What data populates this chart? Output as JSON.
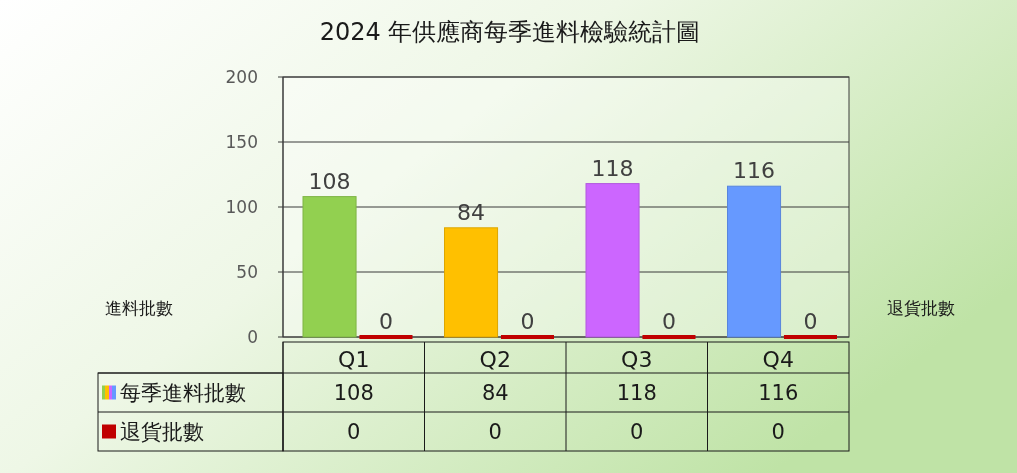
{
  "chart_data": {
    "type": "bar",
    "title": "2024 年供應商每季進料檢驗統計圖",
    "ylabel": "進料批數",
    "y2label": "退貨批數",
    "categories": [
      "Q1",
      "Q2",
      "Q3",
      "Q4"
    ],
    "series": [
      {
        "name": "每季進料批數",
        "colors": [
          "#92d050",
          "#ffc000",
          "#cc66ff",
          "#6699ff"
        ],
        "values": [
          108,
          84,
          118,
          116
        ]
      },
      {
        "name": "退貨批數",
        "color": "#c00000",
        "values": [
          0,
          0,
          0,
          0
        ]
      }
    ],
    "annotations": [
      {
        "text": "108",
        "x": "Q1",
        "y": 108
      },
      {
        "text": "84",
        "x": "Q2",
        "y": 84
      },
      {
        "text": "118",
        "x": "Q3",
        "y": 118
      },
      {
        "text": "116",
        "x": "Q4",
        "y": 116
      },
      {
        "text": "0",
        "x": "Q1",
        "y": 0
      },
      {
        "text": "0",
        "x": "Q2",
        "y": 0
      },
      {
        "text": "0",
        "x": "Q3",
        "y": 0
      },
      {
        "text": "0",
        "x": "Q4",
        "y": 0
      }
    ],
    "ylim": [
      0,
      200
    ],
    "yticks": [
      0,
      50,
      100,
      150,
      200
    ],
    "grid": "y",
    "data_labels": true,
    "legend": "bottom left"
  }
}
